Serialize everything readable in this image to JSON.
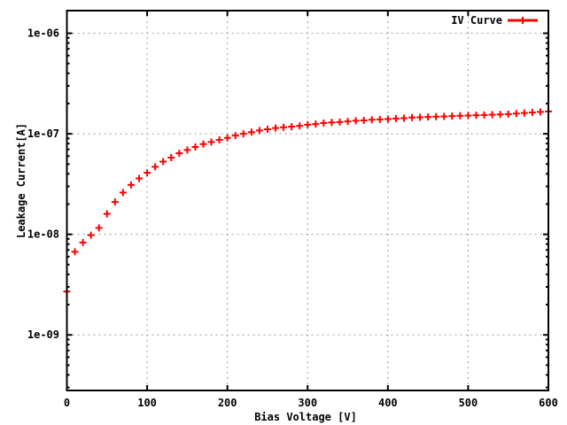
{
  "figure": {
    "background_color": "#ffffff",
    "border_color": "#000000",
    "grid_color": "#9c9c9c",
    "text_color": "#000000",
    "legend": {
      "label": "IV Curve",
      "position": "top-right-inside",
      "sample_color": "#ff0000"
    }
  },
  "chart_data": {
    "type": "scatter",
    "title": "",
    "xlabel": "Bias Voltage [V]",
    "ylabel": "Leakage Current[A]",
    "x_scale": "linear",
    "y_scale": "log",
    "xlim": [
      0,
      600
    ],
    "ylim": [
      2.8e-10,
      1.68e-06
    ],
    "x_ticks": [
      0,
      100,
      200,
      300,
      400,
      500,
      600
    ],
    "x_tick_labels": [
      "0",
      "100",
      "200",
      "300",
      "400",
      "500",
      "600"
    ],
    "y_ticks": [
      1e-09,
      1e-08,
      1e-07,
      1e-06
    ],
    "y_tick_labels": [
      "1e-09",
      "1e-08",
      "1e-07",
      "1e-06"
    ],
    "grid": "on",
    "legend_position": "top-right inside",
    "series": [
      {
        "name": "IV Curve",
        "color": "#ff0000",
        "marker": "plus",
        "x": [
          0,
          10,
          20,
          30,
          40,
          50,
          60,
          70,
          80,
          90,
          100,
          110,
          120,
          130,
          140,
          150,
          160,
          170,
          180,
          190,
          200,
          210,
          220,
          230,
          240,
          250,
          260,
          270,
          280,
          290,
          300,
          310,
          320,
          330,
          340,
          350,
          360,
          370,
          380,
          390,
          400,
          410,
          420,
          430,
          440,
          450,
          460,
          470,
          480,
          490,
          500,
          510,
          520,
          530,
          540,
          550,
          560,
          570,
          580,
          590,
          600
        ],
        "y": [
          2.7e-09,
          6.7e-09,
          8.3e-09,
          9.8e-09,
          1.16e-08,
          1.6e-08,
          2.1e-08,
          2.6e-08,
          3.1e-08,
          3.6e-08,
          4.1e-08,
          4.7e-08,
          5.3e-08,
          5.8e-08,
          6.4e-08,
          6.9e-08,
          7.4e-08,
          7.9e-08,
          8.3e-08,
          8.7e-08,
          9.1e-08,
          9.6e-08,
          1e-07,
          1.04e-07,
          1.08e-07,
          1.11e-07,
          1.14e-07,
          1.16e-07,
          1.18e-07,
          1.2e-07,
          1.23e-07,
          1.25e-07,
          1.28e-07,
          1.3e-07,
          1.31e-07,
          1.33e-07,
          1.35e-07,
          1.36e-07,
          1.38e-07,
          1.39e-07,
          1.4e-07,
          1.42e-07,
          1.43e-07,
          1.45e-07,
          1.46e-07,
          1.47e-07,
          1.48e-07,
          1.49e-07,
          1.5e-07,
          1.51e-07,
          1.52e-07,
          1.53e-07,
          1.54e-07,
          1.55e-07,
          1.56e-07,
          1.57e-07,
          1.59e-07,
          1.61e-07,
          1.63e-07,
          1.65e-07,
          1.67e-07
        ]
      }
    ]
  }
}
